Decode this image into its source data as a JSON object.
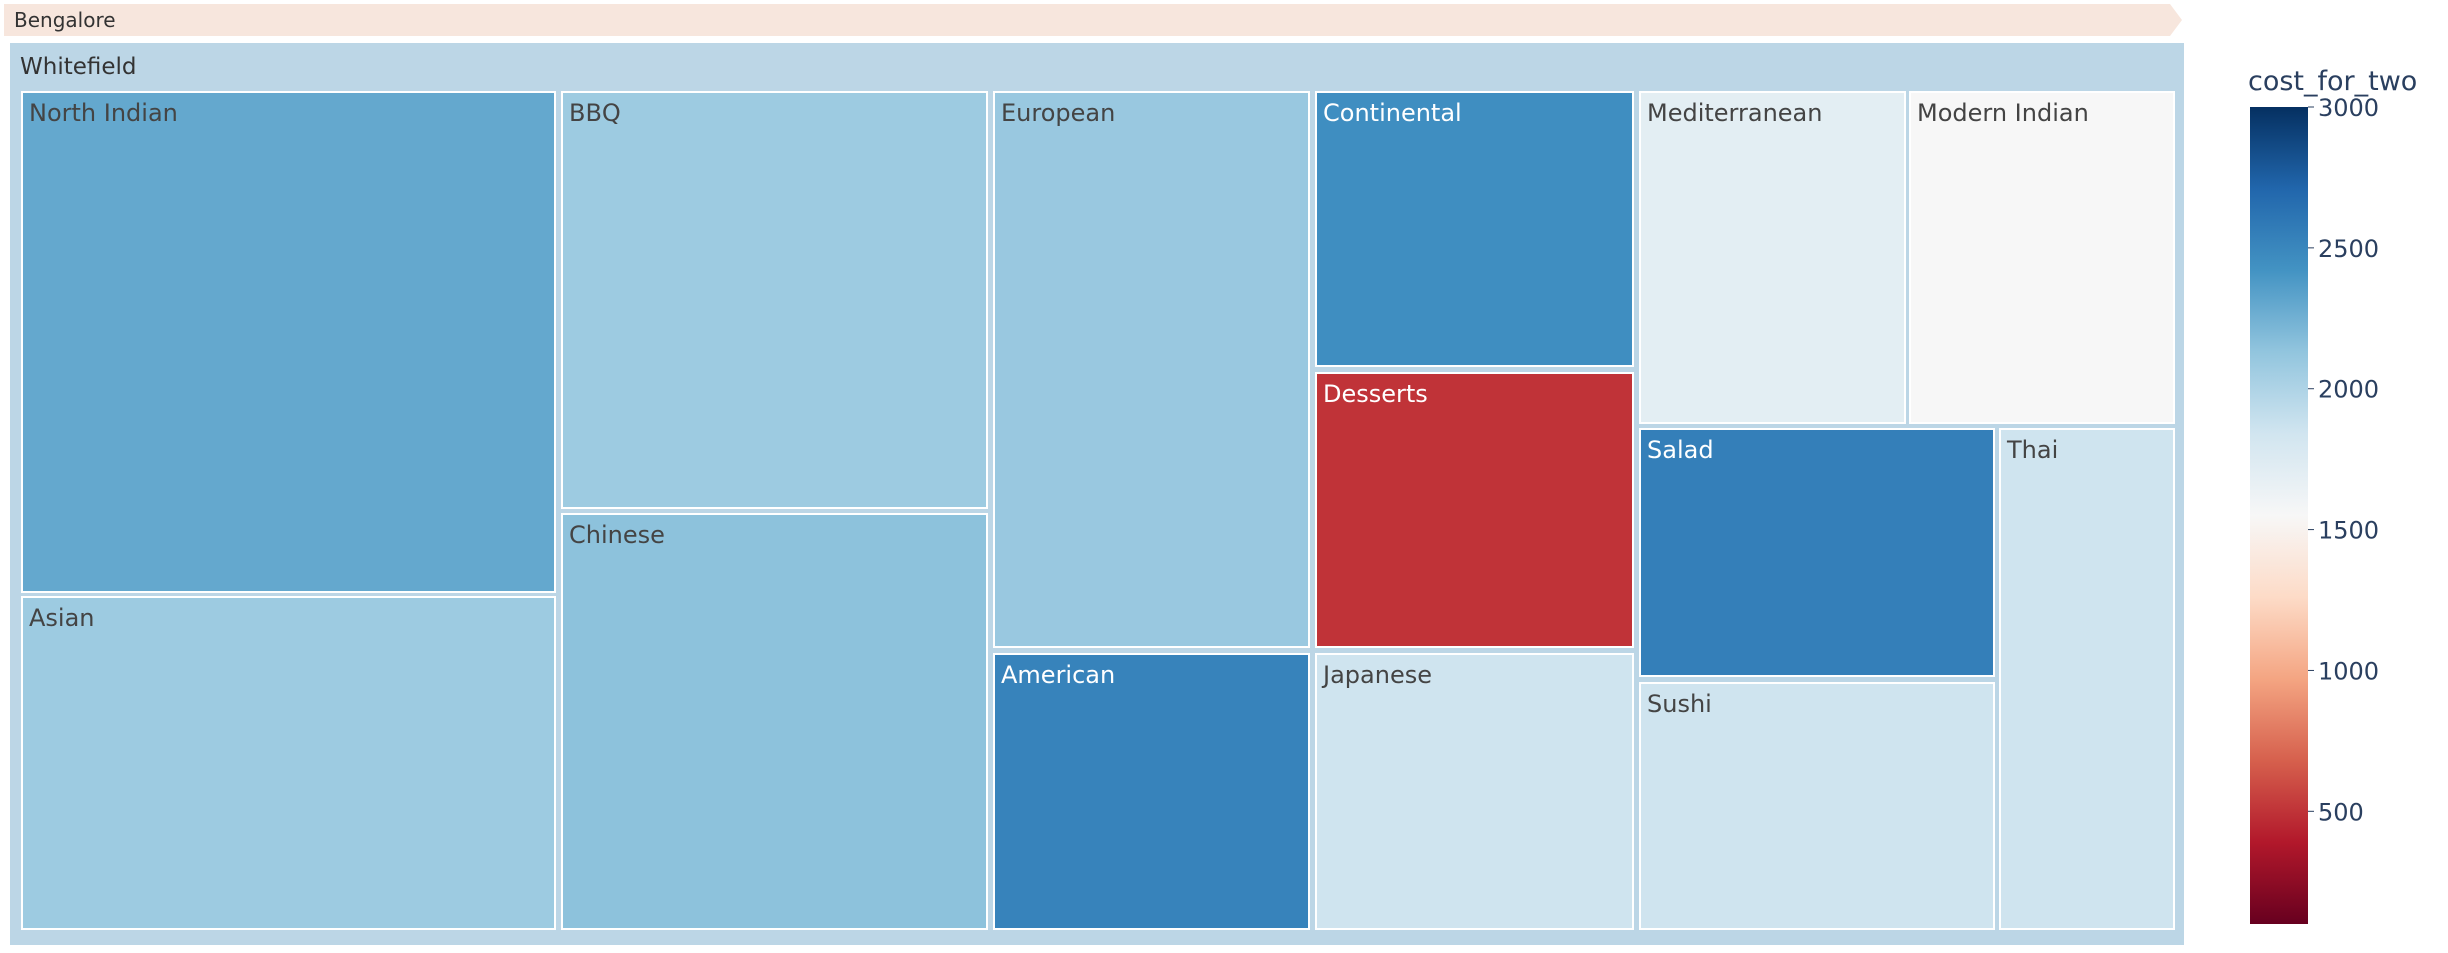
{
  "chart_data": {
    "type": "treemap",
    "pathbar": [
      "Bengalore"
    ],
    "root": {
      "name": "Whitefield",
      "color_value": 2050
    },
    "tiles": [
      {
        "name": "North Indian",
        "color_value": 2300
      },
      {
        "name": "Asian",
        "color_value": 2080
      },
      {
        "name": "BBQ",
        "color_value": 2080
      },
      {
        "name": "Chinese",
        "color_value": 2150
      },
      {
        "name": "European",
        "color_value": 2100
      },
      {
        "name": "American",
        "color_value": 2520
      },
      {
        "name": "Continental",
        "color_value": 2450
      },
      {
        "name": "Desserts",
        "color_value": 500
      },
      {
        "name": "Japanese",
        "color_value": 1850
      },
      {
        "name": "Mediterranean",
        "color_value": 1700
      },
      {
        "name": "Modern Indian",
        "color_value": 1550
      },
      {
        "name": "Salad",
        "color_value": 2550
      },
      {
        "name": "Sushi",
        "color_value": 1850
      },
      {
        "name": "Thai",
        "color_value": 1850
      }
    ],
    "colorbar": {
      "title": "cost_for_two",
      "range": [
        100,
        3000
      ],
      "ticks": [
        "500",
        "1000",
        "1500",
        "2000",
        "2500",
        "3000"
      ],
      "colorscale": "RdBu"
    }
  }
}
